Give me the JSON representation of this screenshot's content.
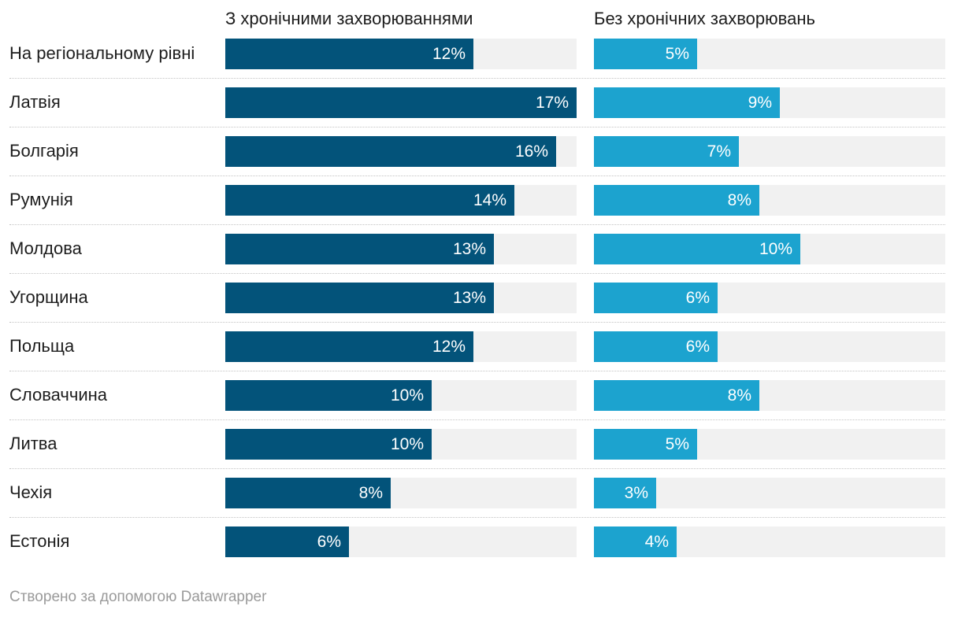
{
  "chart_data": {
    "type": "bar",
    "orientation": "horizontal",
    "categories": [
      "На регіональному рівні",
      "Латвія",
      "Болгарія",
      "Румунія",
      "Молдова",
      "Угорщина",
      "Польща",
      "Словаччина",
      "Литва",
      "Чехія",
      "Естонія"
    ],
    "series": [
      {
        "name": "З хронічними захворюваннями",
        "values": [
          12,
          17,
          16,
          14,
          13,
          13,
          12,
          10,
          10,
          8,
          6
        ],
        "color": "#03537a"
      },
      {
        "name": "Без хронічних захворювань",
        "values": [
          5,
          9,
          7,
          8,
          10,
          6,
          6,
          8,
          5,
          3,
          4
        ],
        "color": "#1ca3cf"
      }
    ],
    "value_labels": [
      [
        "12%",
        "17%",
        "16%",
        "14%",
        "13%",
        "13%",
        "12%",
        "10%",
        "10%",
        "8%",
        "6%"
      ],
      [
        "5%",
        "9%",
        "7%",
        "8%",
        "10%",
        "6%",
        "6%",
        "8%",
        "5%",
        "3%",
        "4%"
      ]
    ],
    "unit": "%",
    "xlim": [
      0,
      17
    ],
    "track_color": "#f1f1f1",
    "title": ""
  },
  "footer": {
    "credit": "Створено за допомогою Datawrapper"
  }
}
